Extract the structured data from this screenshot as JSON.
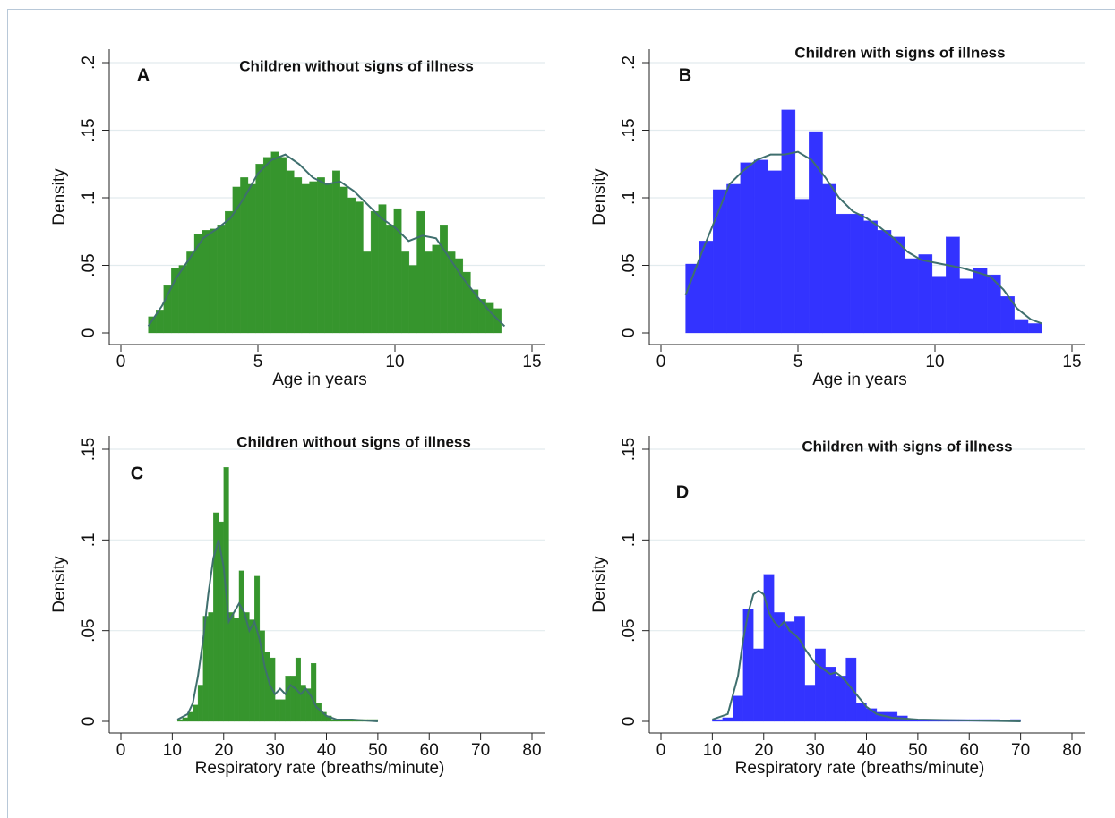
{
  "chart_data": [
    {
      "type": "histogram",
      "label": "A",
      "title": "Children without signs of illness",
      "x_label": "Age in years",
      "y_label": "Density",
      "color": "#36952d",
      "curve_color": "#3f6f6e",
      "bins": [
        1.0,
        1.28,
        1.56,
        1.84,
        2.12,
        2.4,
        2.68,
        2.96,
        3.24,
        3.52,
        3.8,
        4.08,
        4.36,
        4.64,
        4.92,
        5.2,
        5.48,
        5.76,
        6.04,
        6.32,
        6.6,
        6.88,
        7.16,
        7.44,
        7.72,
        8.0,
        8.28,
        8.56,
        8.84,
        9.12,
        9.4,
        9.68,
        9.96,
        10.24,
        10.52,
        10.8,
        11.08,
        11.36,
        11.64,
        11.92,
        12.2,
        12.48,
        12.76,
        13.04,
        13.32,
        13.6,
        13.88
      ],
      "values": [
        0.012,
        0.017,
        0.035,
        0.048,
        0.05,
        0.06,
        0.073,
        0.076,
        0.077,
        0.08,
        0.09,
        0.108,
        0.115,
        0.11,
        0.125,
        0.13,
        0.134,
        0.13,
        0.12,
        0.115,
        0.11,
        0.112,
        0.115,
        0.11,
        0.12,
        0.108,
        0.1,
        0.097,
        0.06,
        0.09,
        0.095,
        0.08,
        0.092,
        0.06,
        0.05,
        0.09,
        0.06,
        0.065,
        0.08,
        0.06,
        0.055,
        0.045,
        0.032,
        0.025,
        0.022,
        0.018
      ],
      "curve_x": [
        1,
        1.5,
        2,
        2.5,
        3,
        3.5,
        4,
        4.5,
        5,
        5.5,
        6,
        6.5,
        7,
        7.5,
        8,
        8.5,
        9,
        9.5,
        10,
        10.5,
        11,
        11.5,
        12,
        12.5,
        13,
        13.5,
        14
      ],
      "curve_values": [
        0.005,
        0.02,
        0.04,
        0.055,
        0.07,
        0.077,
        0.085,
        0.1,
        0.118,
        0.128,
        0.132,
        0.125,
        0.115,
        0.11,
        0.112,
        0.105,
        0.095,
        0.085,
        0.078,
        0.068,
        0.072,
        0.07,
        0.055,
        0.04,
        0.027,
        0.015,
        0.005
      ],
      "xlim": [
        0,
        15
      ],
      "xticks": [
        0,
        5,
        10,
        15
      ],
      "ylim": [
        0,
        0.2
      ],
      "yticks": [
        0,
        {
          "value": 0.05,
          "label": ".05"
        },
        {
          "value": 0.1,
          "label": ".1"
        },
        {
          "value": 0.15,
          "label": ".15"
        },
        {
          "value": 0.2,
          "label": ".2"
        }
      ],
      "grid": true
    },
    {
      "type": "histogram",
      "label": "B",
      "title": "Children with signs of illness",
      "x_label": "Age in years",
      "y_label": "Density",
      "color": "#3333ff",
      "curve_color": "#3f6f6e",
      "bins": [
        0.9,
        1.4,
        1.9,
        2.4,
        2.9,
        3.4,
        3.9,
        4.4,
        4.9,
        5.4,
        5.9,
        6.4,
        6.9,
        7.4,
        7.9,
        8.4,
        8.9,
        9.4,
        9.9,
        10.4,
        10.9,
        11.4,
        11.9,
        12.4,
        12.9,
        13.4,
        13.9
      ],
      "values": [
        0.051,
        0.068,
        0.106,
        0.11,
        0.126,
        0.128,
        0.12,
        0.165,
        0.099,
        0.149,
        0.11,
        0.088,
        0.088,
        0.083,
        0.076,
        0.071,
        0.055,
        0.058,
        0.042,
        0.071,
        0.04,
        0.048,
        0.043,
        0.027,
        0.01,
        0.007
      ],
      "curve_x": [
        0.9,
        1.5,
        2,
        2.5,
        3,
        3.5,
        4,
        4.5,
        5,
        5.5,
        6,
        6.5,
        7,
        7.5,
        8,
        8.5,
        9,
        9.5,
        10,
        10.5,
        11,
        11.5,
        12,
        12.5,
        13,
        13.5,
        13.9
      ],
      "curve_values": [
        0.028,
        0.06,
        0.085,
        0.11,
        0.12,
        0.128,
        0.132,
        0.132,
        0.134,
        0.128,
        0.115,
        0.1,
        0.09,
        0.085,
        0.078,
        0.07,
        0.06,
        0.054,
        0.052,
        0.05,
        0.048,
        0.045,
        0.042,
        0.032,
        0.018,
        0.01,
        0.007
      ],
      "xlim": [
        0,
        15
      ],
      "xticks": [
        0,
        5,
        10,
        15
      ],
      "ylim": [
        0,
        0.2
      ],
      "yticks": [
        0,
        {
          "value": 0.05,
          "label": ".05"
        },
        {
          "value": 0.1,
          "label": ".1"
        },
        {
          "value": 0.15,
          "label": ".15"
        },
        {
          "value": 0.2,
          "label": ".2"
        }
      ],
      "grid": true
    },
    {
      "type": "histogram",
      "label": "C",
      "title": "Children without signs of illness",
      "x_label": "Respiratory rate (breaths/minute)",
      "y_label": "Density",
      "color": "#36952d",
      "curve_color": "#3f6f6e",
      "bins": [
        11,
        12,
        13,
        14,
        15,
        16,
        17,
        18,
        19,
        20,
        21,
        22,
        23,
        24,
        25,
        26,
        27,
        28,
        29,
        30,
        31,
        32,
        33,
        34,
        35,
        36,
        37,
        38,
        39,
        40,
        41,
        42,
        43,
        44,
        45,
        46,
        47,
        48,
        49,
        50
      ],
      "values": [
        0.001,
        0.002,
        0.005,
        0.009,
        0.02,
        0.058,
        0.06,
        0.115,
        0.11,
        0.14,
        0.06,
        0.057,
        0.083,
        0.06,
        0.056,
        0.08,
        0.05,
        0.038,
        0.035,
        0.012,
        0.012,
        0.025,
        0.025,
        0.035,
        0.02,
        0.018,
        0.032,
        0.01,
        0.005,
        0.003,
        0.001,
        0.001,
        0.001,
        0.001,
        0.001,
        0.001,
        0.001,
        0.001,
        0.001
      ],
      "curve_x": [
        11,
        13,
        14,
        15,
        16,
        17,
        18,
        19,
        20,
        21,
        22,
        23,
        24,
        25,
        26,
        27,
        28,
        29,
        30,
        31,
        32,
        33,
        34,
        35,
        36,
        37,
        38,
        40,
        42,
        45,
        50
      ],
      "curve_values": [
        0.001,
        0.004,
        0.01,
        0.025,
        0.045,
        0.07,
        0.09,
        0.1,
        0.085,
        0.055,
        0.06,
        0.065,
        0.06,
        0.05,
        0.055,
        0.045,
        0.03,
        0.02,
        0.015,
        0.018,
        0.015,
        0.02,
        0.018,
        0.015,
        0.018,
        0.014,
        0.008,
        0.003,
        0.001,
        0.001,
        0
      ],
      "xlim": [
        0,
        80
      ],
      "xticks": [
        0,
        10,
        20,
        30,
        40,
        50,
        60,
        70,
        80
      ],
      "ylim": [
        0,
        0.15
      ],
      "yticks": [
        0,
        {
          "value": 0.05,
          "label": ".05"
        },
        {
          "value": 0.1,
          "label": ".1"
        },
        {
          "value": 0.15,
          "label": ".15"
        }
      ],
      "grid": true
    },
    {
      "type": "histogram",
      "label": "D",
      "title": "Children with signs of illness",
      "x_label": "Respiratory rate (breaths/minute)",
      "y_label": "Density",
      "color": "#3333ff",
      "curve_color": "#3f6f6e",
      "bins": [
        10,
        12,
        14,
        16,
        18,
        20,
        22,
        24,
        26,
        28,
        30,
        32,
        34,
        36,
        38,
        40,
        42,
        44,
        46,
        48,
        50,
        52,
        54,
        56,
        58,
        60,
        62,
        64,
        66,
        68,
        70
      ],
      "values": [
        0.001,
        0.002,
        0.014,
        0.062,
        0.04,
        0.081,
        0.06,
        0.055,
        0.058,
        0.02,
        0.04,
        0.03,
        0.025,
        0.035,
        0.01,
        0.007,
        0.005,
        0.005,
        0.003,
        0.001,
        0.001,
        0.001,
        0.001,
        0.001,
        0.001,
        0.001,
        0.001,
        0.001,
        0,
        0.001
      ],
      "curve_x": [
        10,
        13,
        15,
        16,
        17,
        18,
        19,
        20,
        21,
        22,
        23,
        24,
        25,
        26,
        27,
        28,
        30,
        32,
        33,
        34,
        35,
        36,
        38,
        40,
        42,
        45,
        50,
        60,
        70
      ],
      "curve_values": [
        0.001,
        0.004,
        0.025,
        0.045,
        0.06,
        0.07,
        0.072,
        0.07,
        0.06,
        0.055,
        0.052,
        0.055,
        0.05,
        0.048,
        0.045,
        0.04,
        0.032,
        0.028,
        0.026,
        0.027,
        0.025,
        0.022,
        0.015,
        0.008,
        0.004,
        0.002,
        0.001,
        0.0005,
        0
      ],
      "xlim": [
        0,
        80
      ],
      "xticks": [
        0,
        10,
        20,
        30,
        40,
        50,
        60,
        70,
        80
      ],
      "ylim": [
        0,
        0.15
      ],
      "yticks": [
        0,
        {
          "value": 0.05,
          "label": ".05"
        },
        {
          "value": 0.1,
          "label": ".1"
        },
        {
          "value": 0.15,
          "label": ".15"
        }
      ],
      "grid": true
    }
  ]
}
